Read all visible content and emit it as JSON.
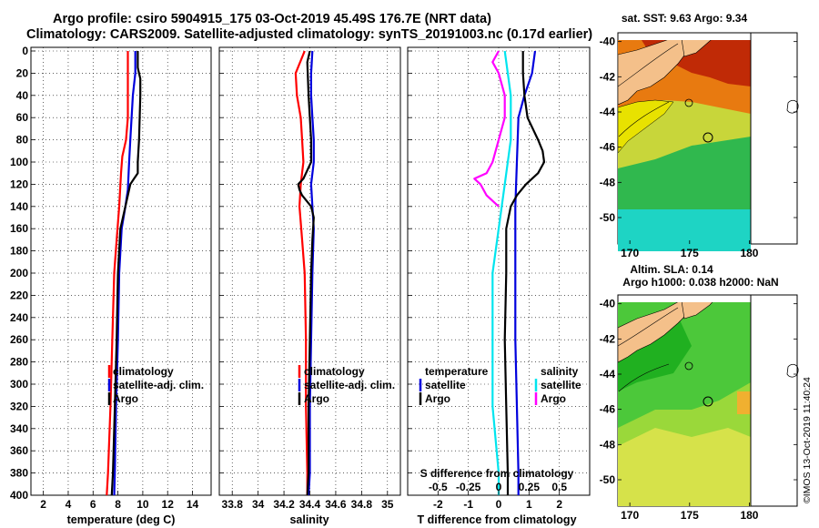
{
  "header": {
    "line1": "Argo profile: csiro 5904915_175 03-Oct-2019 45.49S 176.7E (NRT data)",
    "line2": "Climatology: CARS2009. Satellite-adjusted climatology: synTS_20191003.nc (0.17d earlier)"
  },
  "side_credit": "©IMOS 13-Oct-2019 11:40:24",
  "colors": {
    "climatology": "#ff0000",
    "satellite": "#0000dd",
    "argo": "#000000",
    "sal_satellite": "#00e5ee",
    "sal_argo": "#ff00ff"
  },
  "depth_ticks": [
    0,
    20,
    40,
    60,
    80,
    100,
    120,
    140,
    160,
    180,
    200,
    220,
    240,
    260,
    280,
    300,
    320,
    340,
    360,
    380,
    400
  ],
  "chart_data": [
    {
      "type": "line",
      "id": "temperature",
      "xlabel": "temperature (deg C)",
      "ylabel": "depth",
      "xlim": [
        1,
        15.5
      ],
      "ylim": [
        0,
        400
      ],
      "xticks": [
        2,
        4,
        6,
        8,
        10,
        12,
        14
      ],
      "xtick_labels": [
        "2",
        "4",
        "6",
        "8",
        "10",
        "12",
        "14"
      ],
      "legend": [
        "climatology",
        "satellite-adj. clim.",
        "Argo"
      ],
      "series": [
        {
          "name": "climatology",
          "color": "#ff0000",
          "depth": [
            0,
            20,
            40,
            60,
            80,
            95,
            110,
            140,
            170,
            200,
            260,
            320,
            380,
            400
          ],
          "values": [
            8.8,
            8.8,
            8.8,
            8.8,
            8.65,
            8.35,
            8.25,
            8.1,
            7.9,
            7.7,
            7.55,
            7.4,
            7.2,
            7.1
          ]
        },
        {
          "name": "satellite-adj. clim.",
          "color": "#0000dd",
          "depth": [
            0,
            20,
            40,
            60,
            80,
            100,
            125,
            140,
            160,
            200,
            260,
            320,
            380,
            400
          ],
          "values": [
            9.4,
            9.4,
            9.2,
            9.1,
            9.0,
            8.9,
            8.8,
            8.6,
            8.3,
            8.1,
            8.0,
            7.85,
            7.75,
            7.7
          ]
        },
        {
          "name": "Argo",
          "color": "#000000",
          "depth": [
            0,
            15,
            25,
            40,
            60,
            80,
            100,
            110,
            115,
            120,
            130,
            140,
            160,
            200,
            260,
            320,
            380,
            400
          ],
          "values": [
            9.6,
            9.6,
            9.8,
            9.8,
            9.75,
            9.7,
            9.6,
            9.6,
            9.3,
            9.0,
            8.8,
            8.6,
            8.2,
            8.0,
            7.9,
            7.75,
            7.6,
            7.5
          ]
        }
      ]
    },
    {
      "type": "line",
      "id": "salinity",
      "xlabel": "salinity",
      "ylabel": "depth",
      "xlim": [
        33.7,
        35.1
      ],
      "ylim": [
        0,
        400
      ],
      "xticks": [
        33.8,
        34,
        34.2,
        34.4,
        34.6,
        34.8,
        35
      ],
      "xtick_labels": [
        "33.8",
        "34",
        "34.2",
        "34.4",
        "34.6",
        "34.8",
        "35"
      ],
      "legend": [
        "climatology",
        "satellite-adj. clim.",
        "Argo"
      ],
      "series": [
        {
          "name": "climatology",
          "color": "#ff0000",
          "depth": [
            0,
            20,
            40,
            60,
            80,
            100,
            120,
            140,
            170,
            200,
            260,
            320,
            380,
            400
          ],
          "values": [
            34.36,
            34.29,
            34.3,
            34.33,
            34.34,
            34.35,
            34.33,
            34.32,
            34.34,
            34.36,
            34.37,
            34.37,
            34.38,
            34.38
          ]
        },
        {
          "name": "satellite-adj. clim.",
          "color": "#0000dd",
          "depth": [
            0,
            20,
            40,
            60,
            80,
            100,
            120,
            140,
            160,
            200,
            260,
            320,
            380,
            400
          ],
          "values": [
            34.42,
            34.41,
            34.41,
            34.42,
            34.43,
            34.43,
            34.41,
            34.42,
            34.43,
            34.42,
            34.41,
            34.4,
            34.4,
            34.39
          ]
        },
        {
          "name": "Argo",
          "color": "#000000",
          "depth": [
            0,
            10,
            40,
            60,
            80,
            100,
            115,
            120,
            125,
            130,
            140,
            150,
            170,
            200,
            260,
            320,
            380,
            400
          ],
          "values": [
            34.4,
            34.38,
            34.39,
            34.4,
            34.41,
            34.41,
            34.35,
            34.31,
            34.32,
            34.34,
            34.41,
            34.43,
            34.42,
            34.41,
            34.4,
            34.39,
            34.39,
            34.38
          ]
        }
      ]
    },
    {
      "type": "line",
      "id": "difference",
      "xlabel": "T difference from climatology",
      "top_axis_label": "S difference from climatology",
      "ylabel": "depth",
      "xlim": [
        -3,
        3
      ],
      "ylim": [
        0,
        400
      ],
      "xticks": [
        -2,
        -1,
        0,
        1,
        2
      ],
      "xtick_labels": [
        "-2",
        "-1",
        "0",
        "1",
        "2"
      ],
      "top_xticks": [
        -2,
        -1,
        0,
        1,
        2
      ],
      "top_xtick_labels": [
        "-0.5",
        "-0.25",
        "0",
        "0.25",
        "0.5"
      ],
      "legend_temperature": {
        "title": "temperature",
        "items": [
          "satellite",
          "Argo"
        ]
      },
      "legend_salinity": {
        "title": "salinity",
        "items": [
          "satellite",
          "Argo"
        ]
      },
      "series": [
        {
          "name": "temperature satellite",
          "color": "#0000dd",
          "depth": [
            0,
            20,
            40,
            60,
            100,
            140,
            200,
            260,
            320,
            380,
            400
          ],
          "values": [
            1.2,
            1.1,
            0.85,
            0.65,
            0.6,
            0.55,
            0.55,
            0.55,
            0.6,
            0.65,
            0.65
          ]
        },
        {
          "name": "temperature Argo",
          "color": "#000000",
          "depth": [
            0,
            20,
            40,
            60,
            80,
            90,
            100,
            110,
            120,
            130,
            140,
            160,
            200,
            260,
            320,
            380,
            400
          ],
          "values": [
            0.8,
            0.8,
            0.85,
            0.95,
            1.3,
            1.45,
            1.5,
            1.3,
            0.9,
            0.6,
            0.4,
            0.25,
            0.25,
            0.2,
            0.25,
            0.3,
            0.3
          ]
        },
        {
          "name": "salinity satellite",
          "color": "#00e5ee",
          "depth": [
            0,
            40,
            80,
            120,
            160,
            200,
            260,
            320,
            380,
            400
          ],
          "values": [
            0.05,
            0.1,
            0.1,
            0.05,
            0.0,
            -0.05,
            -0.05,
            -0.05,
            0.0,
            0.0
          ]
        },
        {
          "name": "salinity Argo",
          "color": "#ff00ff",
          "depth": [
            0,
            10,
            20,
            40,
            60,
            80,
            100,
            110,
            115,
            120,
            130,
            140
          ],
          "values": [
            0.0,
            -0.05,
            0.0,
            0.05,
            0.05,
            0.0,
            -0.05,
            -0.1,
            -0.2,
            -0.15,
            -0.1,
            0.0
          ]
        }
      ]
    },
    {
      "type": "heatmap",
      "id": "sst_map",
      "title": "sat. SST: 9.63 Argo: 9.34",
      "xlim": [
        169,
        184
      ],
      "ylim": [
        -51.5,
        -39.5
      ],
      "xticks": [
        170,
        175,
        180
      ],
      "xtick_labels": [
        "170",
        "175",
        "180"
      ],
      "yticks": [
        -40,
        -42,
        -44,
        -46,
        -48,
        -50
      ],
      "ytick_labels": [
        "-40",
        "-42",
        "-44",
        "-46",
        "-48",
        "-50"
      ],
      "argo_position": {
        "lon": 176.7,
        "lat": -45.49
      }
    },
    {
      "type": "heatmap",
      "id": "sla_map",
      "title": "Altim. SLA: 0.14",
      "subtitle": "Argo h1000: 0.038 h2000: NaN",
      "xlim": [
        169,
        184
      ],
      "ylim": [
        -51.5,
        -39.5
      ],
      "xticks": [
        170,
        175,
        180
      ],
      "xtick_labels": [
        "170",
        "175",
        "180"
      ],
      "yticks": [
        -40,
        -42,
        -44,
        -46,
        -48,
        -50
      ],
      "ytick_labels": [
        "-40",
        "-42",
        "-44",
        "-46",
        "-48",
        "-50"
      ],
      "argo_position": {
        "lon": 176.7,
        "lat": -45.49
      }
    }
  ]
}
